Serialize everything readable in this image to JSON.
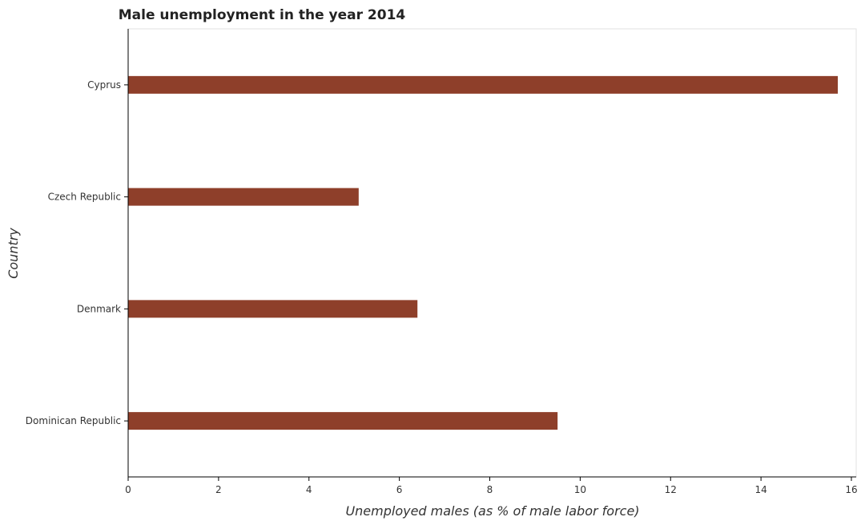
{
  "chart_data": {
    "type": "bar",
    "orientation": "horizontal",
    "title": "Male unemployment in the year 2014",
    "xlabel": "Unemployed males (as % of male labor force)",
    "ylabel": "Country",
    "categories": [
      "Cyprus",
      "Czech Republic",
      "Denmark",
      "Dominican Republic"
    ],
    "values": [
      15.7,
      5.1,
      6.4,
      9.5
    ],
    "xlim": [
      0,
      16.5
    ],
    "xticks": [
      "0",
      "2",
      "4",
      "6",
      "8",
      "10",
      "12",
      "14",
      "16"
    ],
    "grid": false,
    "legend": "none",
    "bar_color": "#8e3f2a"
  }
}
